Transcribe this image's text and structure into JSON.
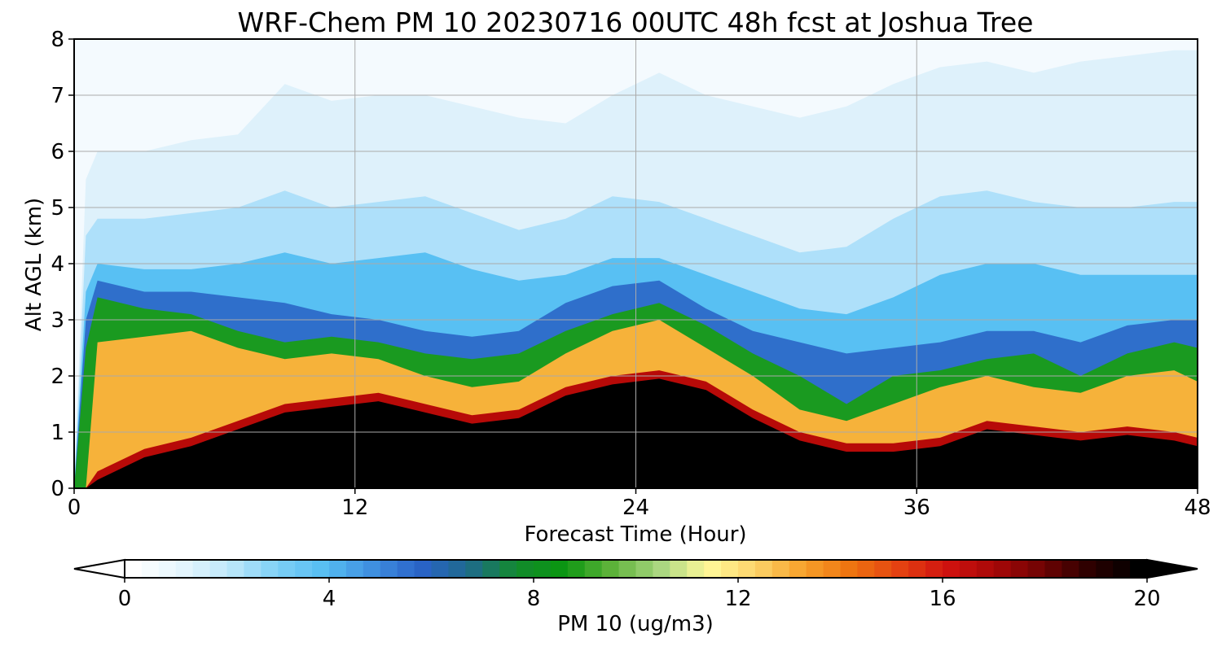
{
  "chart_data": {
    "type": "heatmap",
    "title": "WRF-Chem PM 10  20230716 00UTC 48h fcst at Joshua Tree",
    "xlabel": "Forecast Time (Hour)",
    "ylabel": "Alt AGL (km)",
    "xlim": [
      0,
      48
    ],
    "ylim": [
      0,
      8
    ],
    "xticks": [
      "0",
      "12",
      "24",
      "36",
      "48"
    ],
    "yticks": [
      "0",
      "1",
      "2",
      "3",
      "4",
      "5",
      "6",
      "7",
      "8"
    ],
    "grid": true,
    "x": [
      0,
      0.5,
      1,
      3,
      5,
      7,
      9,
      11,
      13,
      15,
      17,
      19,
      21,
      23,
      25,
      27,
      29,
      31,
      33,
      35,
      37,
      39,
      41,
      43,
      45,
      47,
      48
    ],
    "layer_boundaries_km": {
      "heavy_top": [
        0,
        0,
        0.3,
        0.7,
        0.9,
        1.2,
        1.5,
        1.6,
        1.7,
        1.5,
        1.3,
        1.4,
        1.8,
        2.0,
        2.1,
        1.9,
        1.4,
        1.0,
        0.8,
        0.8,
        0.9,
        1.2,
        1.1,
        1.0,
        1.1,
        1.0,
        0.9
      ],
      "red_top": [
        0,
        0,
        2.6,
        2.7,
        2.8,
        2.5,
        2.3,
        2.4,
        2.3,
        2.0,
        1.8,
        1.9,
        2.4,
        2.8,
        3.0,
        2.5,
        2.0,
        1.4,
        1.2,
        1.5,
        1.8,
        2.0,
        1.8,
        1.7,
        2.0,
        2.1,
        1.9
      ],
      "yellow_top": [
        0,
        2.5,
        3.4,
        3.2,
        3.1,
        2.8,
        2.6,
        2.7,
        2.6,
        2.4,
        2.3,
        2.4,
        2.8,
        3.1,
        3.3,
        2.9,
        2.4,
        2.0,
        1.5,
        2.0,
        2.1,
        2.3,
        2.4,
        2.0,
        2.4,
        2.6,
        2.5
      ],
      "green_top": [
        0,
        3.0,
        3.7,
        3.5,
        3.5,
        3.4,
        3.3,
        3.1,
        3.0,
        2.8,
        2.7,
        2.8,
        3.3,
        3.6,
        3.7,
        3.2,
        2.8,
        2.6,
        2.4,
        2.5,
        2.6,
        2.8,
        2.8,
        2.6,
        2.9,
        3.0,
        3.0
      ],
      "blue_top": [
        0,
        3.5,
        4.0,
        3.9,
        3.9,
        4.0,
        4.2,
        4.0,
        4.1,
        4.2,
        3.9,
        3.7,
        3.8,
        4.1,
        4.1,
        3.8,
        3.5,
        3.2,
        3.1,
        3.4,
        3.8,
        4.0,
        4.0,
        3.8,
        3.8,
        3.8,
        3.8
      ],
      "lightblue_top": [
        0,
        4.5,
        4.8,
        4.8,
        4.9,
        5.0,
        5.3,
        5.0,
        5.1,
        5.2,
        4.9,
        4.6,
        4.8,
        5.2,
        5.1,
        4.8,
        4.5,
        4.2,
        4.3,
        4.8,
        5.2,
        5.3,
        5.1,
        5.0,
        5.0,
        5.1,
        5.1
      ],
      "pale_top": [
        0,
        5.5,
        6.0,
        6.0,
        6.2,
        6.3,
        7.2,
        6.9,
        7.0,
        7.0,
        6.8,
        6.6,
        6.5,
        7.0,
        7.4,
        7.0,
        6.8,
        6.6,
        6.8,
        7.2,
        7.5,
        7.6,
        7.4,
        7.6,
        7.7,
        7.8,
        7.8
      ]
    },
    "colorbar": {
      "label": "PM 10  (ug/m3)",
      "min": 0,
      "max": 20,
      "ticks": [
        "0",
        "4",
        "8",
        "12",
        "16",
        "20"
      ],
      "extend": "both",
      "colors": [
        "#ffffff",
        "#e6f6fd",
        "#bfe8fa",
        "#7ed0f6",
        "#56bdf2",
        "#3f8fe0",
        "#2a63c8",
        "#1e6a8c",
        "#138a2e",
        "#0a9610",
        "#5fb33a",
        "#a8d680",
        "#fff99a",
        "#fcd36a",
        "#f7a12a",
        "#ee7310",
        "#e44211",
        "#d0120f",
        "#a70808",
        "#6e0303",
        "#2a0000",
        "#000000"
      ]
    }
  }
}
